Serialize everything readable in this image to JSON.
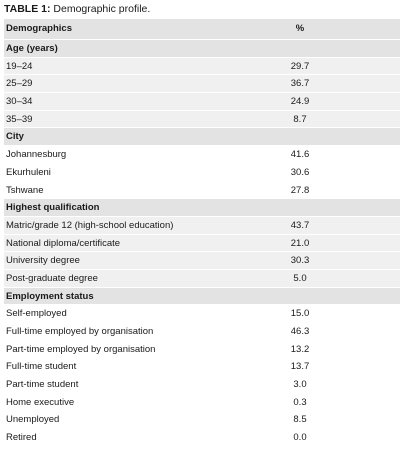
{
  "caption": {
    "label": "TABLE 1:",
    "text": " Demographic profile."
  },
  "header": {
    "col1": "Demographics",
    "col2": "%"
  },
  "rows": [
    {
      "kind": "sec",
      "label": "Age (years)",
      "value": ""
    },
    {
      "kind": "alt",
      "label": "19–24",
      "value": "29.7"
    },
    {
      "kind": "alt",
      "label": "25–29",
      "value": "36.7"
    },
    {
      "kind": "alt",
      "label": "30–34",
      "value": "24.9"
    },
    {
      "kind": "alt",
      "label": "35–39",
      "value": "8.7"
    },
    {
      "kind": "sec",
      "label": "City",
      "value": ""
    },
    {
      "kind": "plain",
      "label": "Johannesburg",
      "value": "41.6"
    },
    {
      "kind": "plain",
      "label": "Ekurhuleni",
      "value": "30.6"
    },
    {
      "kind": "plain",
      "label": "Tshwane",
      "value": "27.8"
    },
    {
      "kind": "sec",
      "label": "Highest qualification",
      "value": ""
    },
    {
      "kind": "alt",
      "label": "Matric/grade 12 (high-school education)",
      "value": "43.7"
    },
    {
      "kind": "alt",
      "label": "National diploma/certificate",
      "value": "21.0"
    },
    {
      "kind": "alt",
      "label": "University degree",
      "value": "30.3"
    },
    {
      "kind": "alt",
      "label": "Post-graduate degree",
      "value": "5.0"
    },
    {
      "kind": "sec",
      "label": "Employment status",
      "value": ""
    },
    {
      "kind": "plain",
      "label": "Self-employed",
      "value": "15.0"
    },
    {
      "kind": "plain",
      "label": "Full-time employed by organisation",
      "value": "46.3"
    },
    {
      "kind": "plain",
      "label": "Part-time employed by organisation",
      "value": "13.2"
    },
    {
      "kind": "plain",
      "label": "Full-time student",
      "value": "13.7"
    },
    {
      "kind": "plain",
      "label": "Part-time student",
      "value": "3.0"
    },
    {
      "kind": "plain",
      "label": "Home executive",
      "value": "0.3"
    },
    {
      "kind": "plain",
      "label": "Unemployed",
      "value": "8.5"
    },
    {
      "kind": "plain",
      "label": "Retired",
      "value": "0.0"
    }
  ]
}
